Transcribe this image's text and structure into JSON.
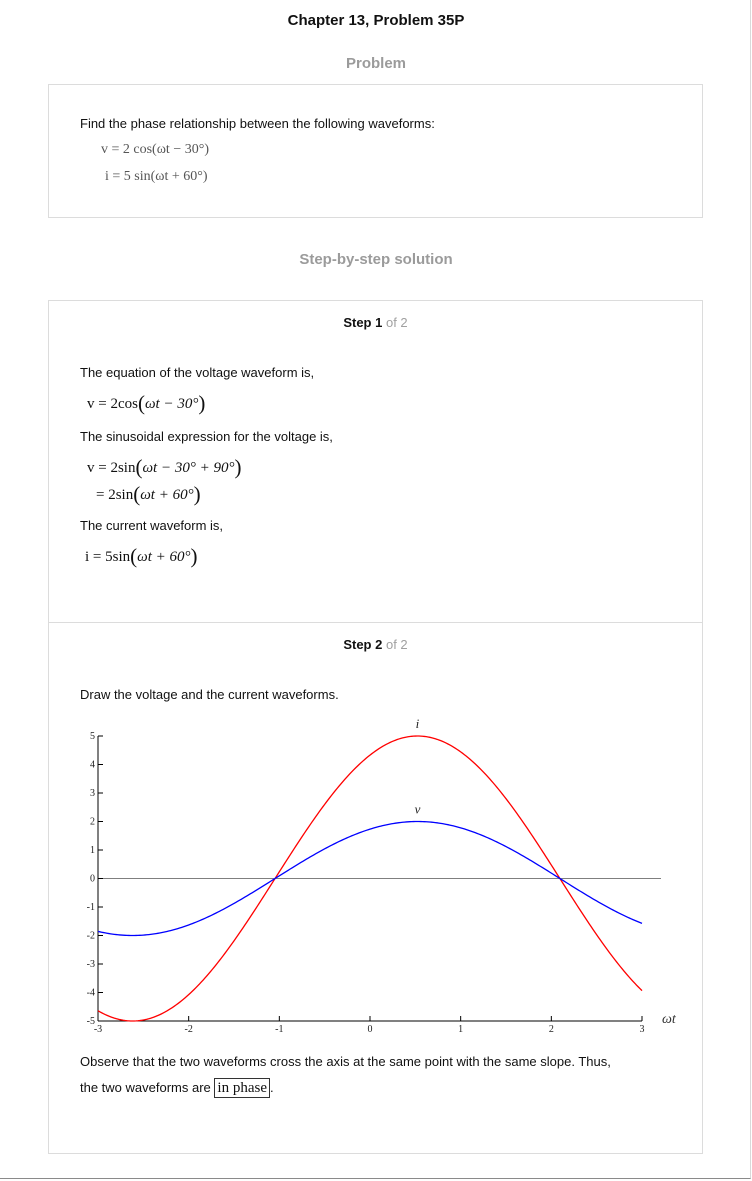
{
  "chapter_title": "Chapter 13, Problem 35P",
  "problem_heading": "Problem",
  "problem": {
    "text": "Find the phase relationship between the following waveforms:",
    "eq_v": "v = 2 cos(ωt − 30°)",
    "eq_i": "i = 5 sin(ωt + 60°)"
  },
  "solution_heading": "Step-by-step solution",
  "step1": {
    "label": "Step 1",
    "of": "of 2",
    "line1": "The equation of the voltage waveform is,",
    "eq1_lhs": "v = 2cos",
    "eq1_arg": "ωt − 30°",
    "line2": "The sinusoidal expression for the voltage is,",
    "eq2_lhs": "v = 2sin",
    "eq2_arg": "ωt − 30° + 90°",
    "eq3_lhs": "= 2sin",
    "eq3_arg": "ωt + 60°",
    "line3": "The current waveform is,",
    "eq4_lhs": "i = 5sin",
    "eq4_arg": "ωt + 60°"
  },
  "step2": {
    "label": "Step 2",
    "of": "of 2",
    "line1": "Draw the voltage and the current waveforms.",
    "conclusion_1": "Observe that the two waveforms cross the axis at the same point with the same slope. Thus,",
    "conclusion_2_pre": "the two waveforms are",
    "conclusion_boxed": "in phase",
    "conclusion_post": "."
  },
  "chart_data": {
    "type": "line",
    "xlabel": "ωt",
    "ylabel": "",
    "xlim": [
      -3,
      3
    ],
    "ylim": [
      -5,
      5
    ],
    "xticks": [
      "-3",
      "-2",
      "-1",
      "0",
      "1",
      "2",
      "3"
    ],
    "yticks": [
      "5",
      "4",
      "3",
      "2",
      "1",
      "0",
      "-1",
      "-2",
      "-3",
      "-4",
      "-5"
    ],
    "series": [
      {
        "name": "i",
        "color": "#ff0000",
        "amplitude": 5,
        "function": "5 sin(ωt + 60°)",
        "x_range": [
          -3,
          3
        ]
      },
      {
        "name": "v",
        "color": "#0000ff",
        "amplitude": 2,
        "function": "2 cos(ωt − 30°)",
        "x_range": [
          -3,
          3
        ]
      }
    ],
    "zero_line_color": "#7f7f7f"
  }
}
